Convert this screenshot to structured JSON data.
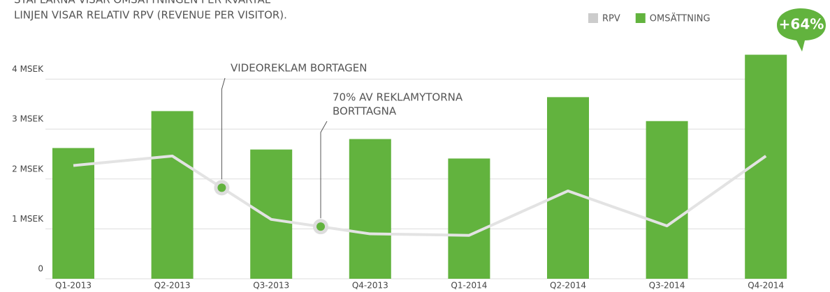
{
  "chart_data": {
    "type": "bar",
    "title": "STAPLARNA VISAR OMSÄTTNINGEN PER KVARTAL",
    "subtitle": "LINJEN VISAR RELATIV RPV (REVENUE PER VISITOR).",
    "badge": "+64%",
    "categories": [
      "Q1-2013",
      "Q2-2013",
      "Q3-2013",
      "Q4-2013",
      "Q1-2014",
      "Q2-2014",
      "Q3-2014",
      "Q4-2014"
    ],
    "series": [
      {
        "name": "RPV",
        "color": "#e3e3e3",
        "type": "line",
        "values": [
          2.27,
          2.46,
          1.19,
          0.9,
          0.87,
          1.76,
          1.06,
          2.46
        ]
      },
      {
        "name": "OMSÄTTNING",
        "color": "#62b33e",
        "type": "bar",
        "values": [
          2.62,
          3.36,
          2.59,
          2.8,
          2.41,
          3.64,
          3.16,
          4.49
        ]
      }
    ],
    "annotations": [
      [
        "VIDEOREKLAM BORTAGEN"
      ],
      [
        "70% AV REKLAMYTORNA",
        "BORTTAGNA"
      ]
    ],
    "ylim": [
      0,
      4.6
    ],
    "yticks": [
      {
        "value": 0,
        "label": "0"
      },
      {
        "value": 1,
        "label": "1 MSEK"
      },
      {
        "value": 2,
        "label": "2 MSEK"
      },
      {
        "value": 3,
        "label": "3 MSEK"
      },
      {
        "value": 4,
        "label": "4 MSEK"
      }
    ],
    "grid": true
  }
}
